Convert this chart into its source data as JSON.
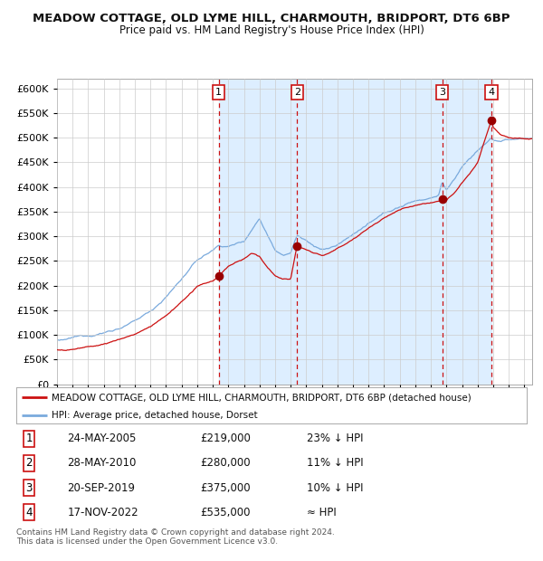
{
  "title": "MEADOW COTTAGE, OLD LYME HILL, CHARMOUTH, BRIDPORT, DT6 6BP",
  "subtitle": "Price paid vs. HM Land Registry's House Price Index (HPI)",
  "plot_bg_color": "#ffffff",
  "grid_color": "#cccccc",
  "ylim": [
    0,
    620000
  ],
  "yticks": [
    0,
    50000,
    100000,
    150000,
    200000,
    250000,
    300000,
    350000,
    400000,
    450000,
    500000,
    550000,
    600000
  ],
  "xstart": 1995.0,
  "xend": 2025.5,
  "hpi_color": "#7aaadd",
  "price_color": "#cc1111",
  "marker_color": "#990000",
  "vline_color": "#cc1111",
  "shade_color": "#ddeeff",
  "sale_dates": [
    2005.38,
    2010.41,
    2019.72,
    2022.88
  ],
  "sale_prices": [
    219000,
    280000,
    375000,
    535000
  ],
  "sale_labels": [
    "1",
    "2",
    "3",
    "4"
  ],
  "legend_entries": [
    "MEADOW COTTAGE, OLD LYME HILL, CHARMOUTH, BRIDPORT, DT6 6BP (detached house)",
    "HPI: Average price, detached house, Dorset"
  ],
  "table_rows": [
    [
      "1",
      "24-MAY-2005",
      "£219,000",
      "23% ↓ HPI"
    ],
    [
      "2",
      "28-MAY-2010",
      "£280,000",
      "11% ↓ HPI"
    ],
    [
      "3",
      "20-SEP-2019",
      "£375,000",
      "10% ↓ HPI"
    ],
    [
      "4",
      "17-NOV-2022",
      "£535,000",
      "≈ HPI"
    ]
  ],
  "footnote": "Contains HM Land Registry data © Crown copyright and database right 2024.\nThis data is licensed under the Open Government Licence v3.0."
}
